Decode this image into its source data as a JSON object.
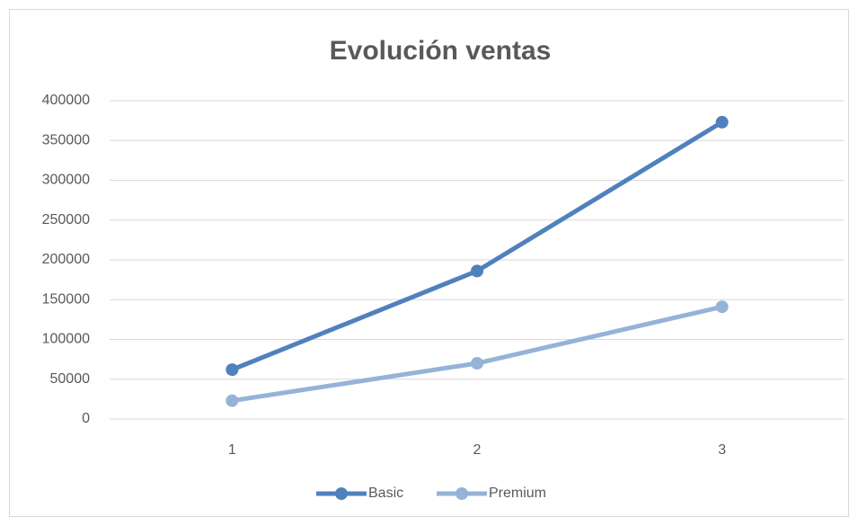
{
  "chart_data": {
    "type": "line",
    "title": "Evolución ventas",
    "categories": [
      "1",
      "2",
      "3"
    ],
    "series": [
      {
        "name": "Basic",
        "color": "#4f81bd",
        "values": [
          62000,
          186000,
          373000
        ]
      },
      {
        "name": "Premium",
        "color": "#95b3d7",
        "values": [
          23000,
          70000,
          141000
        ]
      }
    ],
    "ylim": [
      0,
      400000
    ],
    "yticks": [
      0,
      50000,
      100000,
      150000,
      200000,
      250000,
      300000,
      350000,
      400000
    ],
    "grid": true,
    "legend": "bottom"
  }
}
